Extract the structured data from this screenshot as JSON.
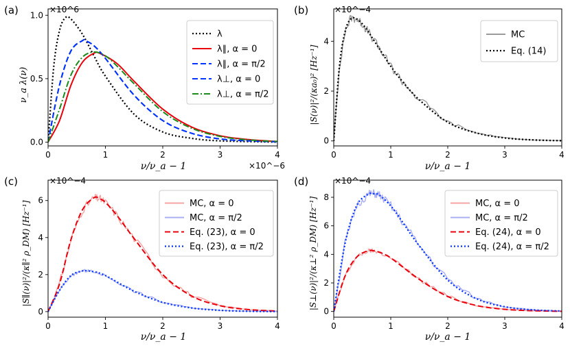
{
  "colors": {
    "lambda": "#000000",
    "par_a0": "#e8000b",
    "par_api2": "#0033ff",
    "perp_a0": "#0033ff",
    "perp_api2": "#1a8a1a",
    "mc_gray": "#9a9a9a",
    "mc_red": "#f5a3a3",
    "mc_blue": "#a9adf6"
  },
  "chart_data": [
    {
      "panel": "(a)",
      "type": "line",
      "xlabel": "ν/ν_a − 1",
      "ylabel": "ν_a λ(ν)",
      "x_multiplier": "×10^−6",
      "y_multiplier": "×10^6",
      "xlim": [
        0,
        4
      ],
      "ylim": [
        -0.03,
        1.05
      ],
      "xticks": [
        "0",
        "1",
        "2",
        "3",
        "4"
      ],
      "yticks": [
        "0.0",
        "0.5",
        "1.0"
      ],
      "legend": "top-right",
      "series": [
        {
          "name": "λ",
          "style": "dotted",
          "color_key": "lambda",
          "peak_x": 0.33,
          "peak_y": 0.98,
          "x": [
            0,
            0.1,
            0.2,
            0.3,
            0.4,
            0.6,
            0.8,
            1.0,
            1.5,
            2.0,
            2.5,
            3.0,
            4.0
          ],
          "y": [
            0,
            0.6,
            0.88,
            0.98,
            0.97,
            0.85,
            0.68,
            0.52,
            0.22,
            0.08,
            0.03,
            0.01,
            0.0
          ]
        },
        {
          "name": "λ∥, α = 0",
          "style": "solid",
          "color_key": "par_a0",
          "x": [
            0,
            0.2,
            0.4,
            0.6,
            0.8,
            0.9,
            1.2,
            1.5,
            2.0,
            2.5,
            3.0,
            3.5,
            4.0
          ],
          "y": [
            0,
            0.17,
            0.45,
            0.63,
            0.7,
            0.7,
            0.62,
            0.48,
            0.26,
            0.12,
            0.05,
            0.02,
            0.005
          ]
        },
        {
          "name": "λ∥, α = π/2",
          "style": "dashed",
          "color_key": "par_api2",
          "x": [
            0,
            0.2,
            0.4,
            0.6,
            0.65,
            0.8,
            1.0,
            1.5,
            2.0,
            2.5,
            3.0,
            3.5,
            4.0
          ],
          "y": [
            0,
            0.45,
            0.72,
            0.8,
            0.8,
            0.76,
            0.66,
            0.37,
            0.17,
            0.07,
            0.025,
            0.01,
            0.003
          ]
        },
        {
          "name": "λ⊥, α = 0",
          "style": "dashed",
          "color_key": "perp_a0",
          "x": [
            0,
            0.2,
            0.4,
            0.6,
            0.65,
            0.8,
            1.0,
            1.5,
            2.0,
            2.5,
            3.0,
            3.5,
            4.0
          ],
          "y": [
            0,
            0.45,
            0.72,
            0.8,
            0.8,
            0.76,
            0.66,
            0.37,
            0.17,
            0.07,
            0.025,
            0.01,
            0.003
          ]
        },
        {
          "name": "λ⊥, α = π/2",
          "style": "dashdot",
          "color_key": "perp_api2",
          "x": [
            0,
            0.2,
            0.4,
            0.6,
            0.8,
            1.0,
            1.2,
            1.5,
            2.0,
            2.5,
            3.0,
            3.5,
            4.0
          ],
          "y": [
            0,
            0.26,
            0.53,
            0.67,
            0.71,
            0.68,
            0.6,
            0.46,
            0.24,
            0.11,
            0.045,
            0.017,
            0.005
          ]
        }
      ]
    },
    {
      "panel": "(b)",
      "type": "line",
      "xlabel": "ν/ν_a − 1",
      "ylabel": "|S(ν)|²/(κa₀)² [Hz⁻¹]",
      "y_multiplier": "×10^−4",
      "xlim": [
        0,
        4
      ],
      "ylim": [
        -0.2,
        5.3
      ],
      "xticks": [
        "0",
        "1",
        "2",
        "3",
        "4"
      ],
      "yticks": [
        "0",
        "2",
        "4"
      ],
      "legend": "top-right",
      "series": [
        {
          "name": "MC",
          "style": "solid-noisy",
          "color_key": "mc_gray",
          "x": [
            0,
            0.1,
            0.2,
            0.3,
            0.4,
            0.5,
            0.6,
            0.8,
            1.0,
            1.2,
            1.5,
            2.0,
            2.5,
            3.0,
            3.5,
            4.0
          ],
          "y": [
            0,
            3.0,
            4.4,
            4.95,
            4.9,
            4.7,
            4.4,
            3.7,
            3.0,
            2.4,
            1.65,
            0.75,
            0.32,
            0.12,
            0.04,
            0.01
          ]
        },
        {
          "name": "Eq. (14)",
          "style": "dotted",
          "color_key": "lambda",
          "x": [
            0,
            0.1,
            0.2,
            0.3,
            0.4,
            0.5,
            0.6,
            0.8,
            1.0,
            1.2,
            1.5,
            2.0,
            2.5,
            3.0,
            3.5,
            4.0
          ],
          "y": [
            0,
            3.0,
            4.4,
            4.9,
            4.9,
            4.7,
            4.4,
            3.7,
            3.0,
            2.4,
            1.65,
            0.75,
            0.32,
            0.12,
            0.04,
            0.01
          ]
        }
      ]
    },
    {
      "panel": "(c)",
      "type": "line",
      "xlabel": "ν/ν_a − 1",
      "ylabel": "|S∥(ν)|²/(κ∥² ρ_DM) [Hz⁻¹]",
      "y_multiplier": "×10^−4",
      "xlim": [
        0,
        4
      ],
      "ylim": [
        -0.3,
        7.1
      ],
      "xticks": [
        "0",
        "1",
        "2",
        "3",
        "4"
      ],
      "yticks": [
        "0",
        "2",
        "4",
        "6"
      ],
      "legend": "top-right",
      "series": [
        {
          "name": "MC, α = 0",
          "style": "solid-noisy",
          "color_key": "mc_red",
          "x": [
            0,
            0.2,
            0.4,
            0.6,
            0.8,
            0.9,
            1.0,
            1.2,
            1.5,
            2.0,
            2.5,
            3.0,
            3.5,
            4.0
          ],
          "y": [
            0,
            1.5,
            3.9,
            5.5,
            6.15,
            6.1,
            5.9,
            5.2,
            3.95,
            2.0,
            0.85,
            0.32,
            0.11,
            0.03
          ]
        },
        {
          "name": "MC, α = π/2",
          "style": "solid-noisy",
          "color_key": "mc_blue",
          "x": [
            0,
            0.2,
            0.4,
            0.6,
            0.7,
            0.8,
            1.0,
            1.5,
            2.0,
            2.5,
            3.0,
            3.5,
            4.0
          ],
          "y": [
            0,
            1.15,
            1.95,
            2.2,
            2.2,
            2.15,
            1.95,
            1.1,
            0.5,
            0.2,
            0.07,
            0.02,
            0.005
          ]
        },
        {
          "name": "Eq. (23), α = 0",
          "style": "dashed",
          "color_key": "par_a0",
          "x": [
            0,
            0.2,
            0.4,
            0.6,
            0.8,
            0.9,
            1.0,
            1.2,
            1.5,
            2.0,
            2.5,
            3.0,
            3.5,
            4.0
          ],
          "y": [
            0,
            1.5,
            3.9,
            5.5,
            6.15,
            6.1,
            5.9,
            5.2,
            3.95,
            2.0,
            0.85,
            0.32,
            0.11,
            0.03
          ]
        },
        {
          "name": "Eq. (23), α = π/2",
          "style": "dotted",
          "color_key": "par_api2",
          "x": [
            0,
            0.2,
            0.4,
            0.6,
            0.7,
            0.8,
            1.0,
            1.5,
            2.0,
            2.5,
            3.0,
            3.5,
            4.0
          ],
          "y": [
            0,
            1.15,
            1.95,
            2.2,
            2.2,
            2.15,
            1.95,
            1.1,
            0.5,
            0.2,
            0.07,
            0.02,
            0.005
          ]
        }
      ]
    },
    {
      "panel": "(d)",
      "type": "line",
      "xlabel": "ν/ν_a − 1",
      "ylabel": "|S⊥(ν)|²/(κ⊥² ρ_DM) [Hz⁻¹]",
      "y_multiplier": "×10^−4",
      "xlim": [
        0,
        4
      ],
      "ylim": [
        -0.4,
        9.2
      ],
      "xticks": [
        "0",
        "1",
        "2",
        "3",
        "4"
      ],
      "yticks": [
        "0",
        "2",
        "4",
        "6",
        "8"
      ],
      "legend": "top-right",
      "series": [
        {
          "name": "MC, α = 0",
          "style": "solid-noisy",
          "color_key": "mc_red",
          "x": [
            0,
            0.2,
            0.4,
            0.6,
            0.7,
            0.8,
            1.0,
            1.5,
            2.0,
            2.5,
            3.0,
            3.5,
            4.0
          ],
          "y": [
            0,
            2.5,
            3.8,
            4.25,
            4.25,
            4.15,
            3.75,
            2.25,
            1.05,
            0.42,
            0.15,
            0.05,
            0.01
          ]
        },
        {
          "name": "MC, α = π/2",
          "style": "solid-noisy",
          "color_key": "mc_blue",
          "x": [
            0,
            0.2,
            0.4,
            0.6,
            0.7,
            0.8,
            1.0,
            1.2,
            1.5,
            2.0,
            2.5,
            3.0,
            3.5,
            4.0
          ],
          "y": [
            0,
            4.8,
            7.4,
            8.2,
            8.25,
            8.15,
            7.4,
            6.3,
            4.6,
            2.2,
            0.9,
            0.33,
            0.11,
            0.03
          ]
        },
        {
          "name": "Eq. (24), α = 0",
          "style": "dashed",
          "color_key": "par_a0",
          "x": [
            0,
            0.2,
            0.4,
            0.6,
            0.7,
            0.8,
            1.0,
            1.5,
            2.0,
            2.5,
            3.0,
            3.5,
            4.0
          ],
          "y": [
            0,
            2.5,
            3.8,
            4.25,
            4.25,
            4.15,
            3.75,
            2.25,
            1.05,
            0.42,
            0.15,
            0.05,
            0.01
          ]
        },
        {
          "name": "Eq. (24), α = π/2",
          "style": "dotted",
          "color_key": "par_api2",
          "x": [
            0,
            0.2,
            0.4,
            0.6,
            0.7,
            0.8,
            1.0,
            1.2,
            1.5,
            2.0,
            2.5,
            3.0,
            3.5,
            4.0
          ],
          "y": [
            0,
            4.8,
            7.4,
            8.2,
            8.25,
            8.15,
            7.4,
            6.3,
            4.6,
            2.2,
            0.9,
            0.33,
            0.11,
            0.03
          ]
        }
      ]
    }
  ]
}
